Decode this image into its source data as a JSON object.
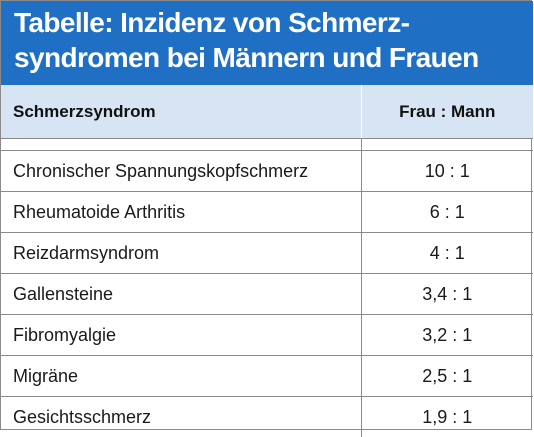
{
  "title": "Tabelle: Inzidenz von Schmerz-\nsyndromen bei Männern und Frauen",
  "colors": {
    "title_background": "#1f6fc4",
    "header_background": "#d6e4f3"
  },
  "table": {
    "headers": [
      "Schmerzsyndrom",
      "Frau : Mann"
    ],
    "rows": [
      {
        "syndrome": "Chronischer Spannungskopfschmerz",
        "ratio": "10 : 1"
      },
      {
        "syndrome": "Rheumatoide Arthritis",
        "ratio": "6 : 1"
      },
      {
        "syndrome": "Reizdarmsyndrom",
        "ratio": "4 : 1"
      },
      {
        "syndrome": "Gallensteine",
        "ratio": "3,4 : 1"
      },
      {
        "syndrome": "Fibromyalgie",
        "ratio": "3,2 : 1"
      },
      {
        "syndrome": "Migräne",
        "ratio": "2,5 : 1"
      },
      {
        "syndrome": "Gesichtsschmerz",
        "ratio": "1,9 : 1"
      }
    ]
  }
}
